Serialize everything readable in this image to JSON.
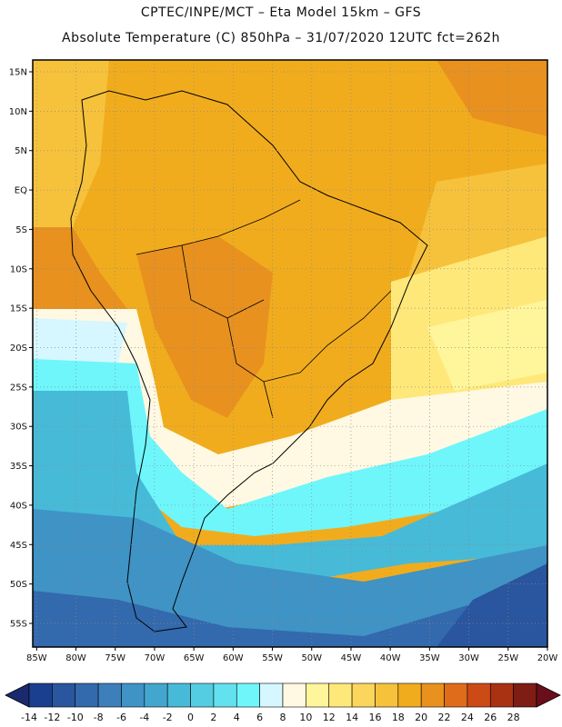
{
  "header": {
    "line1": "CPTEC/INPE/MCT –  Eta Model 15km – GFS",
    "line2": "Absolute Temperature (C) 850hPa – 31/07/2020 12UTC fct=262h"
  },
  "map": {
    "lat_labels": [
      "15N",
      "10N",
      "5N",
      "EQ",
      "5S",
      "10S",
      "15S",
      "20S",
      "25S",
      "30S",
      "35S",
      "40S",
      "45S",
      "50S",
      "55S"
    ],
    "lon_labels": [
      "85W",
      "80W",
      "75W",
      "70W",
      "65W",
      "60W",
      "55W",
      "50W",
      "45W",
      "40W",
      "35W",
      "30W",
      "25W",
      "20W"
    ],
    "lat_values": [
      15,
      10,
      5,
      0,
      -5,
      -10,
      -15,
      -20,
      -25,
      -30,
      -35,
      -40,
      -45,
      -50,
      -55
    ],
    "lon_values": [
      -85,
      -80,
      -75,
      -70,
      -65,
      -60,
      -55,
      -50,
      -45,
      -40,
      -35,
      -30,
      -25,
      -20
    ],
    "extent": {
      "lon_min": -85.5,
      "lon_max": -20,
      "lat_min": -58,
      "lat_max": 16.5
    },
    "grid": true
  },
  "colorbar": {
    "labels": [
      "-14",
      "-12",
      "-10",
      "-8",
      "-6",
      "-4",
      "-2",
      "0",
      "2",
      "4",
      "6",
      "8",
      "10",
      "12",
      "14",
      "16",
      "18",
      "20",
      "22",
      "24",
      "26",
      "28"
    ],
    "colors": [
      "#1b3f8f",
      "#2a559f",
      "#3369ad",
      "#3c7fbb",
      "#3f93c5",
      "#42a6cf",
      "#47bad8",
      "#54cde2",
      "#63e1ee",
      "#6ef6fb",
      "#d6f7ff",
      "#fff8e2",
      "#fff59a",
      "#ffe87a",
      "#fbd55c",
      "#f6c23c",
      "#f1ac1d",
      "#e8911f",
      "#df6c1a",
      "#cc4a15",
      "#a83212",
      "#7d1d13"
    ]
  }
}
